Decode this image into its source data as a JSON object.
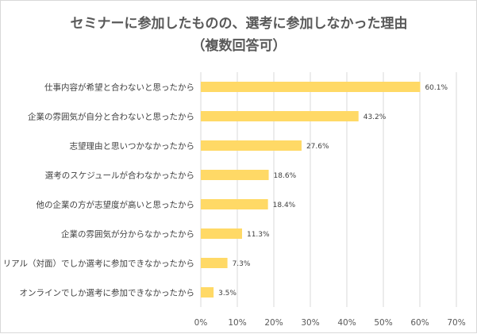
{
  "chart_data": {
    "type": "bar",
    "orientation": "horizontal",
    "title": "セミナーに参加したものの、選考に参加しなかった理由",
    "subtitle": "（複数回答可）",
    "categories": [
      "仕事内容が希望と合わないと思ったから",
      "企業の雰囲気が自分と合わないと思ったから",
      "志望理由と思いつかなかったから",
      "選考のスケジュールが合わなかったから",
      "他の企業の方が志望度が高いと思ったから",
      "企業の雰囲気が分からなかったから",
      "リアル（対面）でしか選考に参加できなかったから",
      "オンラインでしか選考に参加できなかったから"
    ],
    "values": [
      60.1,
      43.2,
      27.6,
      18.6,
      18.4,
      11.3,
      7.3,
      3.5
    ],
    "value_labels": [
      "60.1%",
      "43.2%",
      "27.6%",
      "18.6%",
      "18.4%",
      "11.3%",
      "7.3%",
      "3.5%"
    ],
    "xlim": [
      0,
      70
    ],
    "xticks": [
      0,
      10,
      20,
      30,
      40,
      50,
      60,
      70
    ],
    "xtick_labels": [
      "0%",
      "10%",
      "20%",
      "30%",
      "40%",
      "50%",
      "60%",
      "70%"
    ],
    "grid": true,
    "legend": "none",
    "bar_color": "#ffd966",
    "grid_color": "#d9d9d9"
  }
}
